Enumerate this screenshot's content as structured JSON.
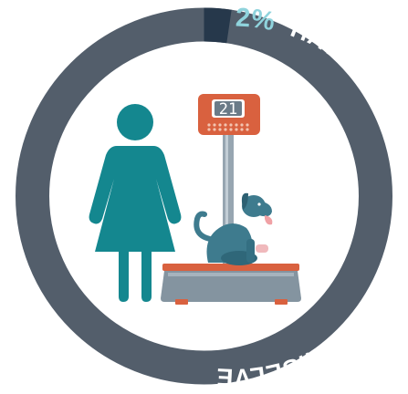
{
  "infographic": {
    "percent_value": 2,
    "percent_label": "2%",
    "caption": "HAVE WEIGHED THEIR PET THEMSELVES",
    "scale_display": "21",
    "colors": {
      "ring": "#535e6b",
      "ring_highlight": "#26384b",
      "teal": "#14878f",
      "scale_orange": "#d9613f",
      "scale_base": "#8494a0",
      "pole": "#97a6b1",
      "percent_text": "#8fd3dc",
      "caption_text": "#ffffff"
    },
    "icons": [
      "woman-icon",
      "dog-icon",
      "weighing-scale-icon"
    ]
  }
}
